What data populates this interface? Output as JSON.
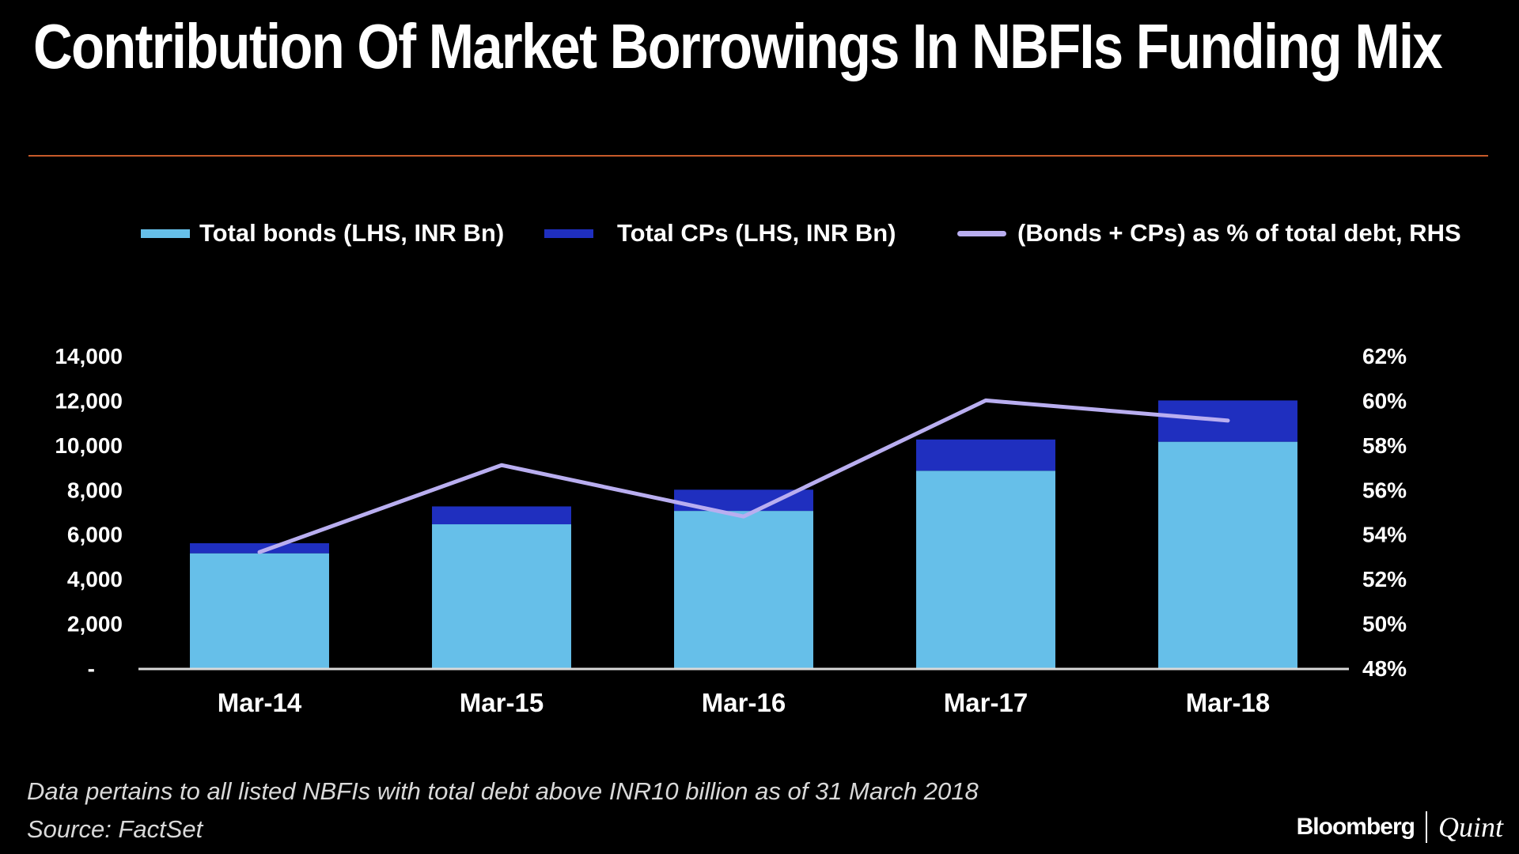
{
  "title": "Contribution Of Market Borrowings In NBFIs Funding Mix",
  "footnote": "Data pertains to all listed NBFIs with total debt above INR10 billion as of 31 March 2018",
  "source": "Source: FactSet",
  "brand": {
    "primary": "Bloomberg",
    "secondary": "Quint"
  },
  "colors": {
    "background": "#000000",
    "bonds": "#66bfe9",
    "cps": "#1f2fbf",
    "line": "#b9aef0",
    "rule": "#c75a2a"
  },
  "chart_data": {
    "type": "bar",
    "stacked": true,
    "title": "Contribution Of Market Borrowings In NBFIs Funding Mix",
    "categories": [
      "Mar-14",
      "Mar-15",
      "Mar-16",
      "Mar-17",
      "Mar-18"
    ],
    "series": [
      {
        "name": "Total bonds (LHS, INR Bn)",
        "axis": "left",
        "type": "bar",
        "values": [
          5150,
          6450,
          7050,
          8850,
          10150
        ]
      },
      {
        "name": "Total CPs (LHS, INR Bn)",
        "axis": "left",
        "type": "bar",
        "values": [
          450,
          800,
          950,
          1400,
          1850
        ]
      },
      {
        "name": "(Bonds + CPs) as % of total debt, RHS",
        "axis": "right",
        "type": "line",
        "values": [
          53.2,
          57.1,
          54.8,
          60.0,
          59.1
        ]
      }
    ],
    "ylim_left": [
      0,
      14000
    ],
    "ylim_right": [
      48,
      62
    ],
    "yticks_left": [
      "-",
      "2,000",
      "4,000",
      "6,000",
      "8,000",
      "10,000",
      "12,000",
      "14,000"
    ],
    "yticks_right": [
      "48%",
      "50%",
      "52%",
      "54%",
      "56%",
      "58%",
      "60%",
      "62%"
    ],
    "grid": false,
    "legend_position": "top"
  }
}
